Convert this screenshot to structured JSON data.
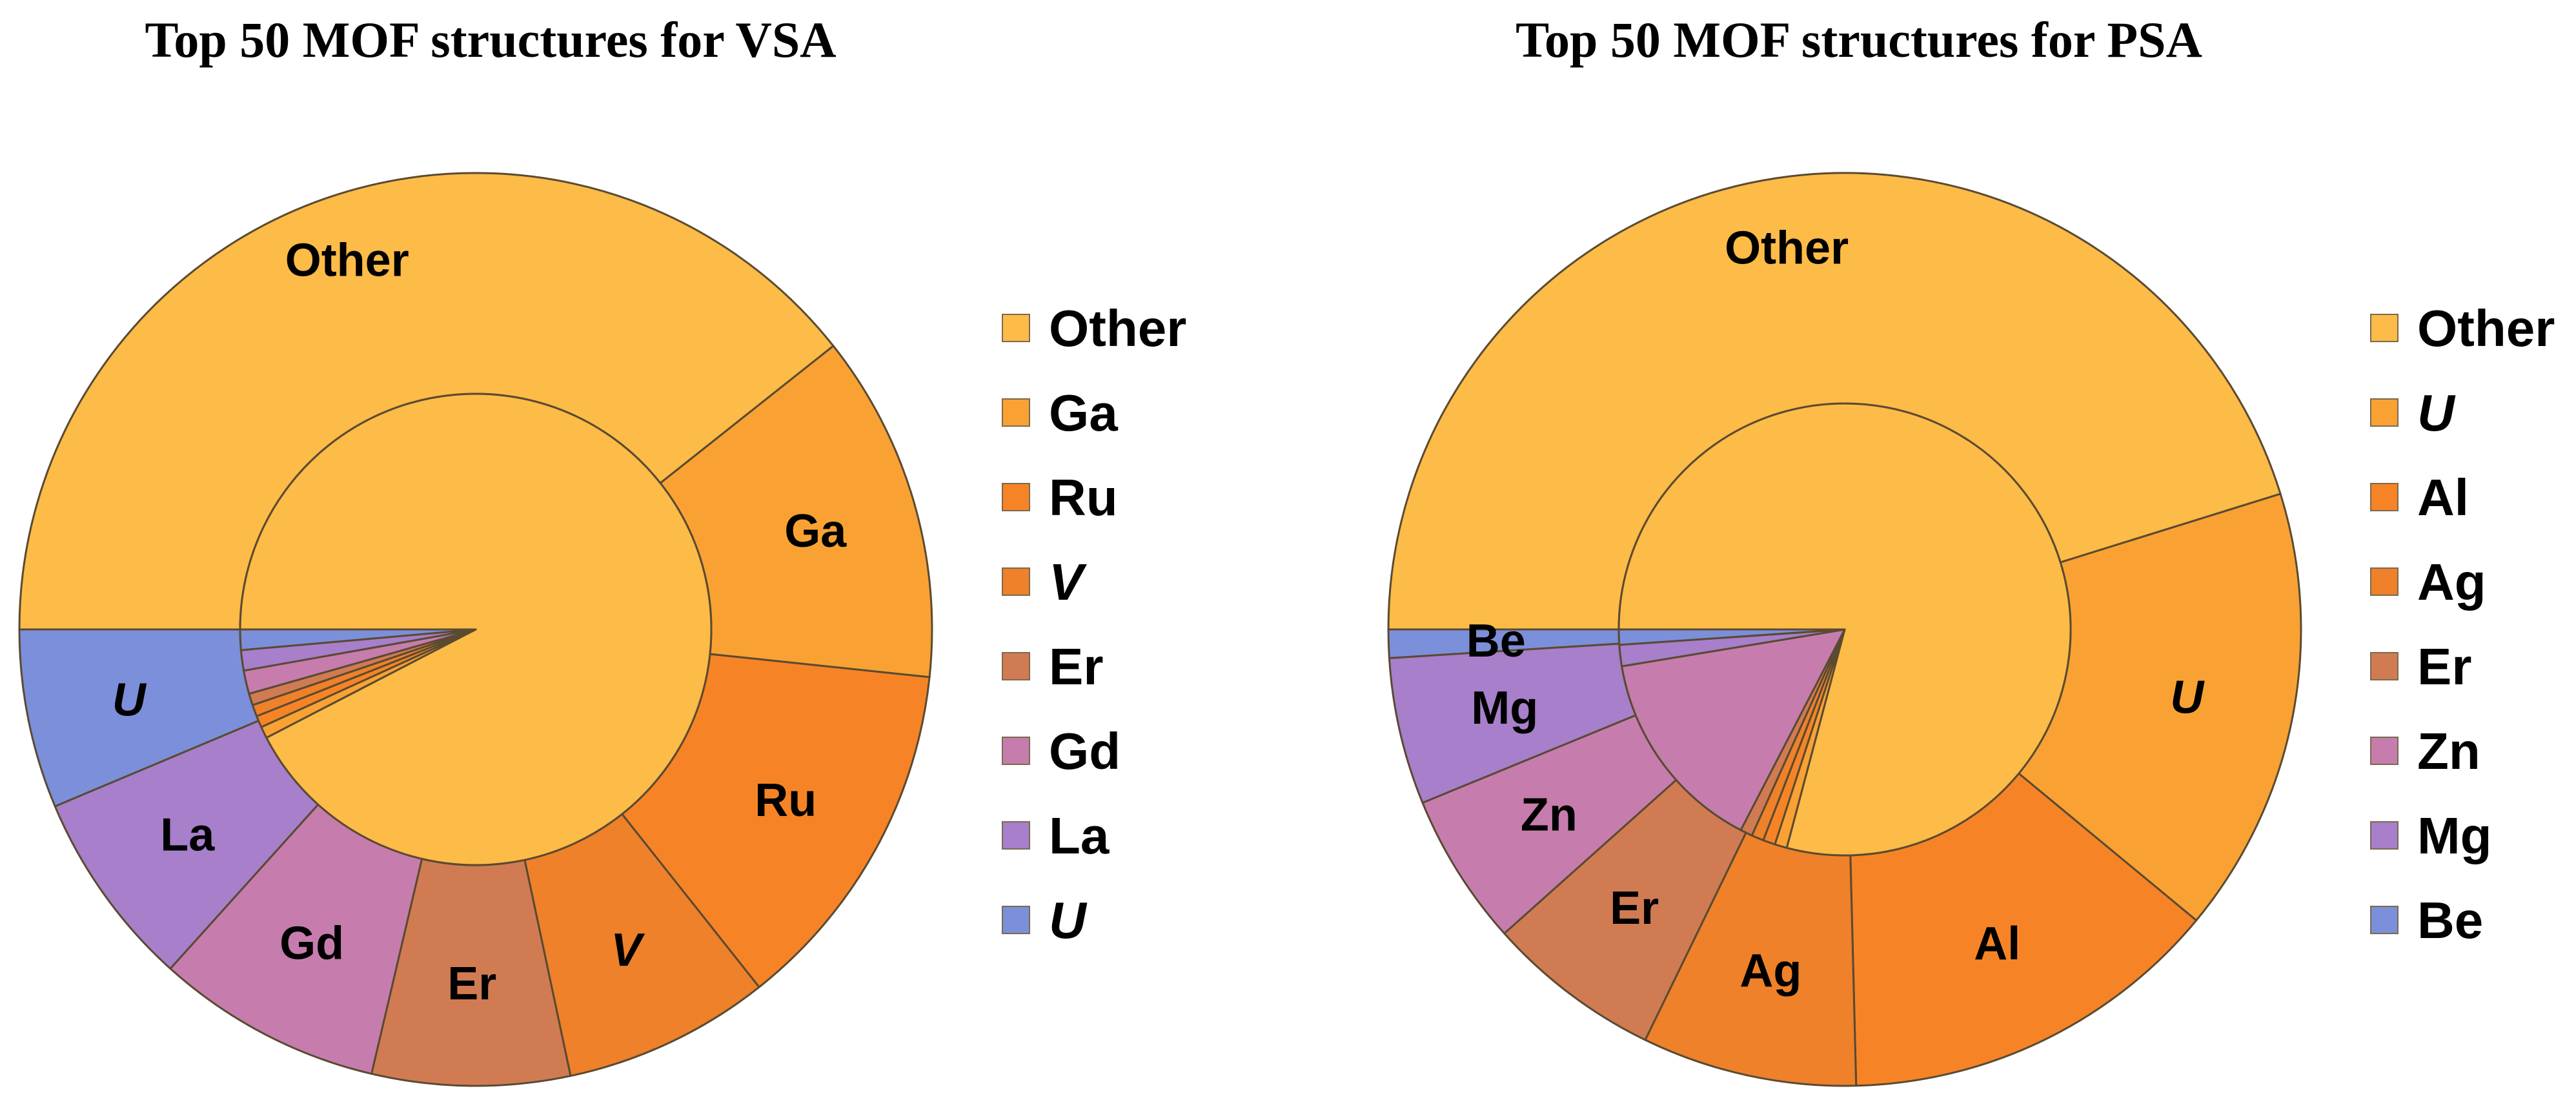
{
  "chart_data": [
    {
      "type": "pie",
      "title": "Top 50 MOF structures for VSA",
      "colors": {
        "Other": "#FDBB47",
        "Ga": "#F9A233",
        "Ru": "#F68426",
        "V": "#EE8129",
        "Er": "#D17B53",
        "Gd": "#C67DAD",
        "La": "#A77FCB",
        "U": "#7C8FDA"
      },
      "outer_ring": {
        "categories": [
          "Other",
          "Ga",
          "Ru",
          "V",
          "Er",
          "Gd",
          "La",
          "U"
        ],
        "values": [
          23.6,
          7.4,
          7.6,
          4.4,
          4.2,
          4.8,
          4.2,
          3.8
        ],
        "italic": [
          "V",
          "U"
        ],
        "labeled": [
          true,
          true,
          true,
          true,
          true,
          true,
          true,
          true
        ]
      },
      "inner_pie": {
        "categories": [
          "Other",
          "Ga",
          "Ru",
          "V",
          "Er",
          "Gd",
          "La",
          "U"
        ],
        "values": [
          46.2,
          0.4,
          0.4,
          0.4,
          0.4,
          0.8,
          0.7,
          0.7
        ]
      },
      "legend": {
        "position": "right",
        "entries": [
          {
            "label": "Other",
            "italic": false
          },
          {
            "label": "Ga",
            "italic": false
          },
          {
            "label": "Ru",
            "italic": false
          },
          {
            "label": "V",
            "italic": true
          },
          {
            "label": "Er",
            "italic": false
          },
          {
            "label": "Gd",
            "italic": false
          },
          {
            "label": "La",
            "italic": false
          },
          {
            "label": "U",
            "italic": true
          }
        ]
      }
    },
    {
      "type": "pie",
      "title": "Top 50 MOF structures for PSA",
      "colors": {
        "Other": "#FDBB47",
        "U": "#F9A233",
        "Al": "#F68426",
        "Ag": "#EE8129",
        "Er": "#D17B53",
        "Zn": "#C67DAD",
        "Mg": "#A77FCB",
        "Be": "#7C8FDA"
      },
      "outer_ring": {
        "categories": [
          "Other",
          "U",
          "Al",
          "Ag",
          "Er",
          "Zn",
          "Mg",
          "Be"
        ],
        "values": [
          22.6,
          7.9,
          6.8,
          3.8,
          3.1,
          2.7,
          2.6,
          0.5
        ],
        "italic": [
          "U"
        ],
        "labeled": [
          true,
          true,
          true,
          true,
          true,
          true,
          true,
          true
        ]
      },
      "inner_pie": {
        "categories": [
          "Other",
          "U",
          "Al",
          "Ag",
          "Er",
          "Zn",
          "Mg",
          "Be"
        ],
        "values": [
          36.4,
          0.4,
          0.4,
          0.4,
          0.4,
          6.8,
          0.7,
          0.5
        ]
      },
      "legend": {
        "position": "right",
        "entries": [
          {
            "label": "Other",
            "italic": false
          },
          {
            "label": "U",
            "italic": true
          },
          {
            "label": "Al",
            "italic": false
          },
          {
            "label": "Ag",
            "italic": false
          },
          {
            "label": "Er",
            "italic": false
          },
          {
            "label": "Zn",
            "italic": false
          },
          {
            "label": "Mg",
            "italic": false
          },
          {
            "label": "Be",
            "italic": false
          }
        ]
      }
    }
  ]
}
